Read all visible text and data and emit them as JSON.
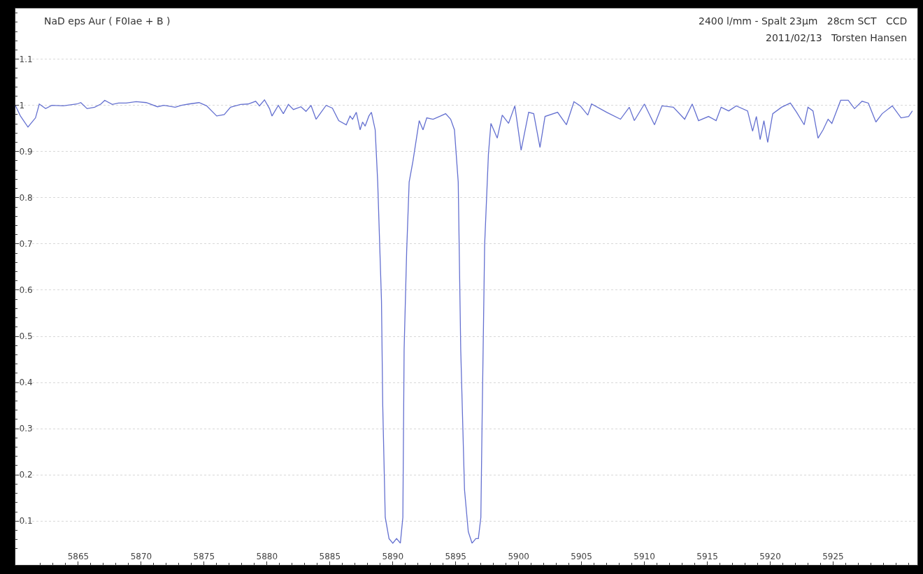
{
  "chart_data": {
    "type": "line",
    "title": "NaD eps Aur ( F0Iae + B )",
    "annotations": [
      "2400 l/mm - Spalt 23µm   28cm SCT   CCD",
      "2011/02/13   Torsten Hansen"
    ],
    "series": [
      {
        "color": "#6470d0",
        "x": [
          5860.0,
          5860.4,
          5861.0,
          5861.6,
          5861.9,
          5862.4,
          5862.9,
          5863.8,
          5864.9,
          5865.2,
          5865.7,
          5866.3,
          5866.8,
          5867.1,
          5867.7,
          5868.2,
          5868.8,
          5869.6,
          5870.4,
          5871.3,
          5871.8,
          5872.7,
          5873.2,
          5873.8,
          5874.6,
          5875.2,
          5876.0,
          5876.6,
          5877.1,
          5877.9,
          5878.5,
          5879.1,
          5879.4,
          5879.8,
          5880.2,
          5880.4,
          5880.9,
          5881.3,
          5881.7,
          5882.1,
          5882.7,
          5883.1,
          5883.5,
          5883.9,
          5884.3,
          5884.7,
          5885.2,
          5885.7,
          5886.3,
          5886.6,
          5886.8,
          5887.1,
          5887.4,
          5887.6,
          5887.8,
          5888.1,
          5888.3,
          5888.6,
          5888.8,
          5889.1,
          5889.2,
          5889.4,
          5889.7,
          5890.0,
          5890.3,
          5890.6,
          5890.8,
          5890.9,
          5891.1,
          5891.3,
          5891.6,
          5891.9,
          5892.1,
          5892.4,
          5892.7,
          5893.2,
          5893.8,
          5894.2,
          5894.6,
          5894.9,
          5895.2,
          5895.4,
          5895.7,
          5896.0,
          5896.3,
          5896.6,
          5896.8,
          5897.0,
          5897.1,
          5897.3,
          5897.6,
          5897.8,
          5898.3,
          5898.7,
          5899.2,
          5899.7,
          5900.2,
          5900.8,
          5901.2,
          5901.7,
          5902.1,
          5903.1,
          5903.8,
          5904.4,
          5904.9,
          5905.5,
          5905.8,
          5907.0,
          5908.1,
          5908.8,
          5909.2,
          5910.0,
          5910.8,
          5911.4,
          5912.3,
          5913.2,
          5913.8,
          5914.3,
          5915.1,
          5915.7,
          5916.1,
          5916.7,
          5917.3,
          5918.2,
          5918.6,
          5918.9,
          5919.2,
          5919.5,
          5919.8,
          5920.2,
          5920.9,
          5921.6,
          5922.1,
          5922.7,
          5923.0,
          5923.4,
          5923.8,
          5924.2,
          5924.6,
          5924.9,
          5925.6,
          5926.2,
          5926.7,
          5927.3,
          5927.8,
          5928.4,
          5928.9,
          5929.7,
          5930.4,
          5931.0,
          5931.3
        ],
        "values": [
          1.0,
          0.977,
          0.953,
          0.973,
          1.003,
          0.993,
          1.0,
          0.999,
          1.003,
          1.006,
          0.993,
          0.996,
          1.003,
          1.011,
          1.002,
          1.005,
          1.005,
          1.008,
          1.006,
          0.997,
          1.0,
          0.996,
          1.0,
          1.003,
          1.006,
          0.999,
          0.977,
          0.98,
          0.996,
          1.002,
          1.003,
          1.009,
          0.999,
          1.012,
          0.993,
          0.977,
          1.0,
          0.982,
          1.002,
          0.991,
          0.997,
          0.987,
          1.0,
          0.97,
          0.985,
          1.0,
          0.994,
          0.967,
          0.958,
          0.977,
          0.97,
          0.985,
          0.947,
          0.964,
          0.955,
          0.977,
          0.985,
          0.947,
          0.834,
          0.577,
          0.35,
          0.108,
          0.062,
          0.052,
          0.062,
          0.052,
          0.108,
          0.471,
          0.682,
          0.834,
          0.879,
          0.932,
          0.967,
          0.947,
          0.973,
          0.97,
          0.977,
          0.982,
          0.97,
          0.947,
          0.834,
          0.471,
          0.168,
          0.077,
          0.052,
          0.062,
          0.062,
          0.108,
          0.319,
          0.698,
          0.894,
          0.961,
          0.929,
          0.979,
          0.961,
          0.999,
          0.903,
          0.985,
          0.982,
          0.909,
          0.976,
          0.985,
          0.958,
          1.008,
          0.999,
          0.979,
          1.003,
          0.985,
          0.97,
          0.996,
          0.967,
          1.003,
          0.958,
          0.999,
          0.996,
          0.97,
          1.003,
          0.967,
          0.976,
          0.967,
          0.996,
          0.988,
          0.999,
          0.988,
          0.944,
          0.976,
          0.926,
          0.967,
          0.92,
          0.982,
          0.996,
          1.005,
          0.985,
          0.958,
          0.996,
          0.988,
          0.929,
          0.947,
          0.97,
          0.961,
          1.011,
          1.011,
          0.993,
          1.009,
          1.005,
          0.964,
          0.982,
          0.999,
          0.973,
          0.976,
          0.988
        ]
      }
    ],
    "xlim": [
      5860,
      5931.7
    ],
    "ylim": [
      0.005,
      1.21
    ],
    "xticks": [
      5865,
      5870,
      5875,
      5880,
      5885,
      5890,
      5895,
      5900,
      5905,
      5910,
      5915,
      5920,
      5925
    ],
    "yticks": [
      0.1,
      0.2,
      0.3,
      0.4,
      0.5,
      0.6,
      0.7,
      0.8,
      0.9,
      1,
      1.1
    ],
    "grid": "y",
    "marker": "none",
    "line_style": "solid"
  }
}
